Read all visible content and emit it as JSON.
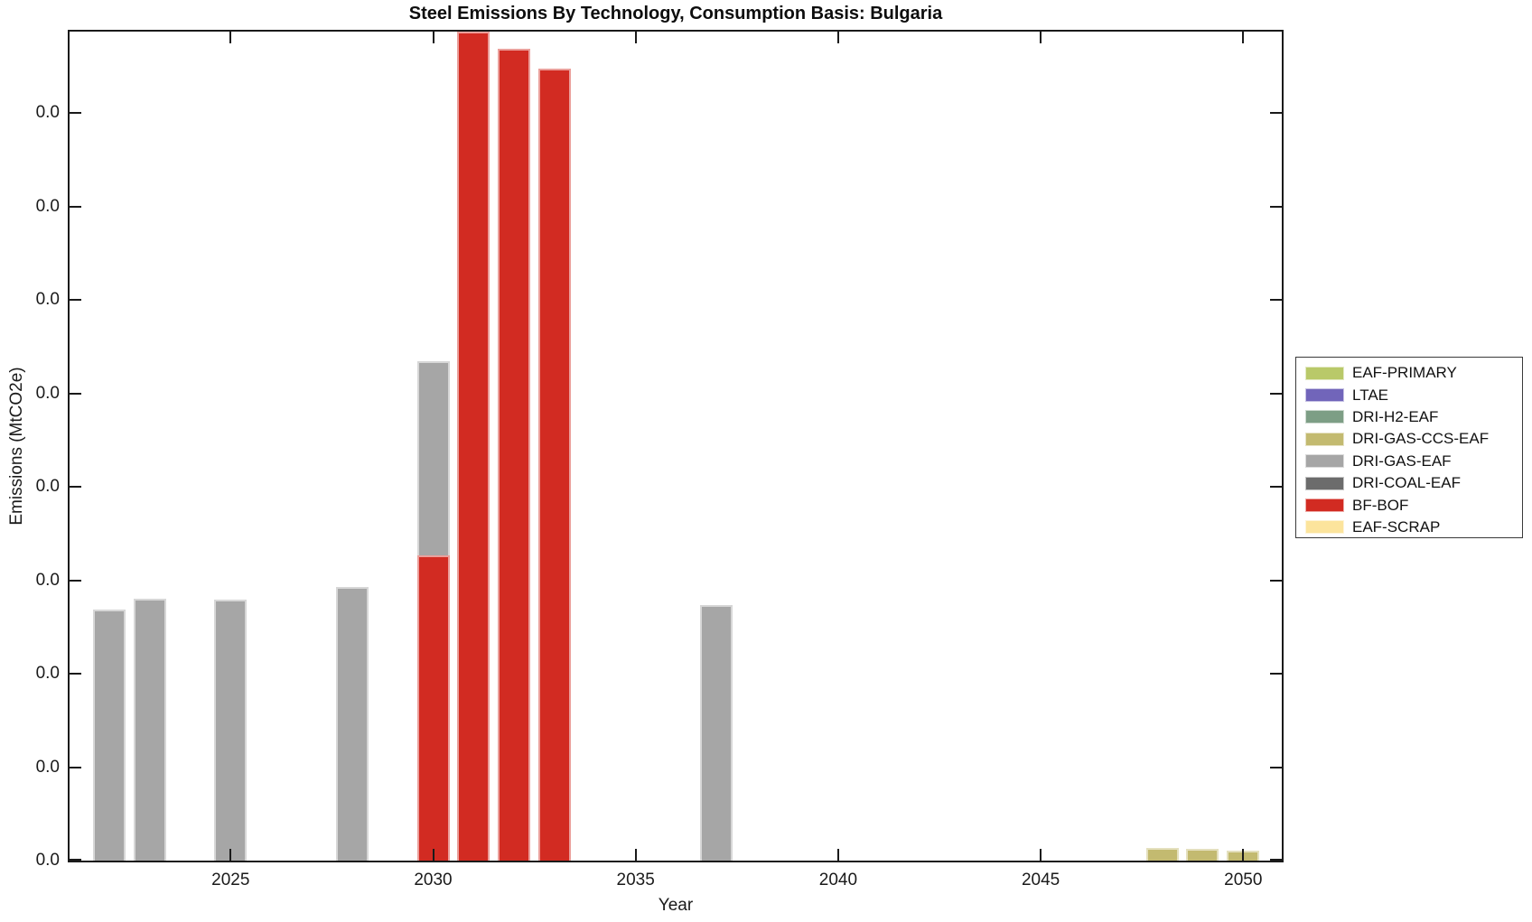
{
  "chart_data": {
    "type": "bar",
    "stacked": true,
    "title": "Steel Emissions By Technology, Consumption Basis: Bulgaria",
    "xlabel": "Year",
    "ylabel": "Emissions (MtCO2e)",
    "x_tick_labels": [
      "2025",
      "2030",
      "2035",
      "2040",
      "2045",
      "2050"
    ],
    "x_tick_years": [
      2025,
      2030,
      2035,
      2040,
      2045,
      2050
    ],
    "y_tick_labels": [
      "0.0",
      "0.0",
      "0.0",
      "0.0",
      "0.0",
      "0.0",
      "0.0",
      "0.0",
      "0.0"
    ],
    "value_units_note": "Every y-axis tick label reads 0.0; bar values below are expressed in y-axis gridline (tick-interval) units measured from the chart, bottom tick = 0.0.",
    "x_axis_range_years": [
      2021,
      2051
    ],
    "y_axis_range_tick_units": [
      0,
      8.87
    ],
    "bar_width_years": 0.8,
    "grid": false,
    "legend_position": "right-outside",
    "legend": [
      {
        "label": "EAF-PRIMARY",
        "color": "#b9c969"
      },
      {
        "label": "LTAE",
        "color": "#7165ba"
      },
      {
        "label": "DRI-H2-EAF",
        "color": "#7d9e85"
      },
      {
        "label": "DRI-GAS-CCS-EAF",
        "color": "#c3ba70"
      },
      {
        "label": "DRI-GAS-EAF",
        "color": "#a6a6a6"
      },
      {
        "label": "DRI-COAL-EAF",
        "color": "#6c6c6c"
      },
      {
        "label": "BF-BOF",
        "color": "#d22b22"
      },
      {
        "label": "EAF-SCRAP",
        "color": "#fce49c"
      }
    ],
    "series": [
      {
        "name": "BF-BOF",
        "color": "#d22b22",
        "stack_level": 0,
        "points": [
          {
            "year": 2030,
            "value": 3.27
          },
          {
            "year": 2031,
            "value": 8.9,
            "clipped_at_axis_top": true
          },
          {
            "year": 2032,
            "value": 8.69
          },
          {
            "year": 2033,
            "value": 8.48
          }
        ]
      },
      {
        "name": "DRI-GAS-EAF",
        "color": "#a6a6a6",
        "stack_level": 1,
        "points": [
          {
            "year": 2022,
            "value": 2.69
          },
          {
            "year": 2023,
            "value": 2.8
          },
          {
            "year": 2025,
            "value": 2.79
          },
          {
            "year": 2028,
            "value": 2.93
          },
          {
            "year": 2030,
            "value": 2.08
          },
          {
            "year": 2037,
            "value": 2.74
          }
        ]
      },
      {
        "name": "DRI-GAS-CCS-EAF",
        "color": "#c3ba70",
        "stack_level": 2,
        "points": [
          {
            "year": 2048,
            "value": 0.14
          },
          {
            "year": 2049,
            "value": 0.13
          },
          {
            "year": 2050,
            "value": 0.11
          }
        ]
      }
    ]
  }
}
